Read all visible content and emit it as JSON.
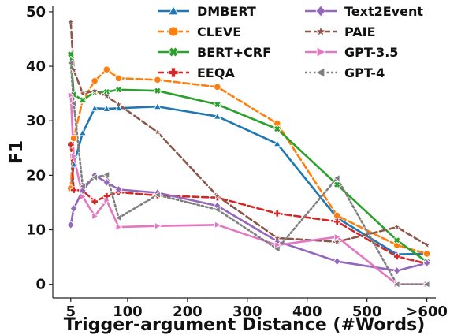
{
  "chart_data": {
    "type": "line",
    "xlabel": "Trigger-argument Distance (#Words)",
    "ylabel": "F1",
    "xlim": [
      -25,
      615
    ],
    "ylim": [
      -2.5,
      51
    ],
    "x_ticks": [
      {
        "value": 5,
        "label": "5"
      },
      {
        "value": 100,
        "label": "100"
      },
      {
        "value": 200,
        "label": "200"
      },
      {
        "value": 300,
        "label": "300"
      },
      {
        "value": 400,
        "label": "400"
      },
      {
        "value": 500,
        "label": "500"
      },
      {
        "value": 600,
        "label": ">600"
      }
    ],
    "y_ticks": [
      0,
      10,
      20,
      30,
      40,
      50
    ],
    "grid": false,
    "legend_placement": "top-right",
    "series": [
      {
        "name": "DMBERT",
        "color": "#1f77b4",
        "marker": "triangle-up",
        "dash": "solid",
        "x": [
          5,
          10,
          25,
          45,
          65,
          85,
          150,
          250,
          350,
          450,
          550,
          600
        ],
        "y": [
          17.5,
          22.0,
          27.8,
          32.3,
          32.2,
          32.3,
          32.6,
          30.8,
          25.8,
          12.2,
          5.5,
          5.6
        ]
      },
      {
        "name": "CLEVE",
        "color": "#ff7f0e",
        "marker": "circle",
        "dash": "dashed",
        "x": [
          5,
          10,
          25,
          45,
          65,
          85,
          150,
          250,
          350,
          450,
          550,
          600
        ],
        "y": [
          17.6,
          26.8,
          33.8,
          37.3,
          39.4,
          37.8,
          37.5,
          36.2,
          29.5,
          12.6,
          7.2,
          5.6
        ]
      },
      {
        "name": "BERT+CRF",
        "color": "#2ca02c",
        "marker": "x",
        "dash": "solid",
        "x": [
          5,
          10,
          25,
          45,
          65,
          85,
          150,
          250,
          350,
          450,
          550,
          600
        ],
        "y": [
          42.2,
          34.8,
          33.8,
          35.3,
          35.3,
          35.7,
          35.5,
          33.0,
          28.5,
          18.3,
          8.1,
          4.1
        ]
      },
      {
        "name": "EEQA",
        "color": "#d62728",
        "marker": "plus",
        "dash": "dashed",
        "x": [
          5,
          10,
          25,
          45,
          65,
          85,
          150,
          250,
          350,
          450,
          550,
          600
        ],
        "y": [
          25.6,
          17.3,
          17.2,
          15.2,
          16.2,
          16.9,
          16.3,
          15.9,
          13.0,
          11.5,
          5.1,
          3.8
        ]
      },
      {
        "name": "Text2Event",
        "color": "#9467bd",
        "marker": "diamond",
        "dash": "solid",
        "x": [
          5,
          10,
          25,
          45,
          65,
          85,
          150,
          250,
          350,
          450,
          550,
          600
        ],
        "y": [
          10.9,
          13.9,
          17.2,
          20.0,
          18.7,
          17.4,
          16.8,
          14.4,
          7.9,
          4.2,
          2.5,
          3.9
        ]
      },
      {
        "name": "PAIE",
        "color": "#8c564b",
        "marker": "star",
        "dash": "dashed",
        "x": [
          5,
          10,
          25,
          45,
          65,
          85,
          150,
          250,
          350,
          450,
          550,
          600
        ],
        "y": [
          48.1,
          39.3,
          35.0,
          35.5,
          34.5,
          33.0,
          27.9,
          16.2,
          8.5,
          7.8,
          10.5,
          7.2
        ]
      },
      {
        "name": "GPT-3.5",
        "color": "#e377c2",
        "marker": "triangle-right",
        "dash": "solid",
        "x": [
          5,
          10,
          25,
          45,
          65,
          85,
          150,
          250,
          350,
          450,
          550,
          600
        ],
        "y": [
          34.7,
          23.5,
          16.1,
          12.5,
          15.4,
          10.5,
          10.7,
          10.9,
          7.2,
          8.7,
          0.0,
          0.0
        ]
      },
      {
        "name": "GPT-4",
        "color": "#7f7f7f",
        "marker": "triangle-left",
        "dash": "dotted",
        "x": [
          5,
          10,
          25,
          45,
          65,
          85,
          150,
          250,
          350,
          450,
          550,
          600
        ],
        "y": [
          40.6,
          33.2,
          18.0,
          19.6,
          20.1,
          12.2,
          16.4,
          13.7,
          6.5,
          19.5,
          0.0,
          0.0
        ]
      }
    ]
  }
}
